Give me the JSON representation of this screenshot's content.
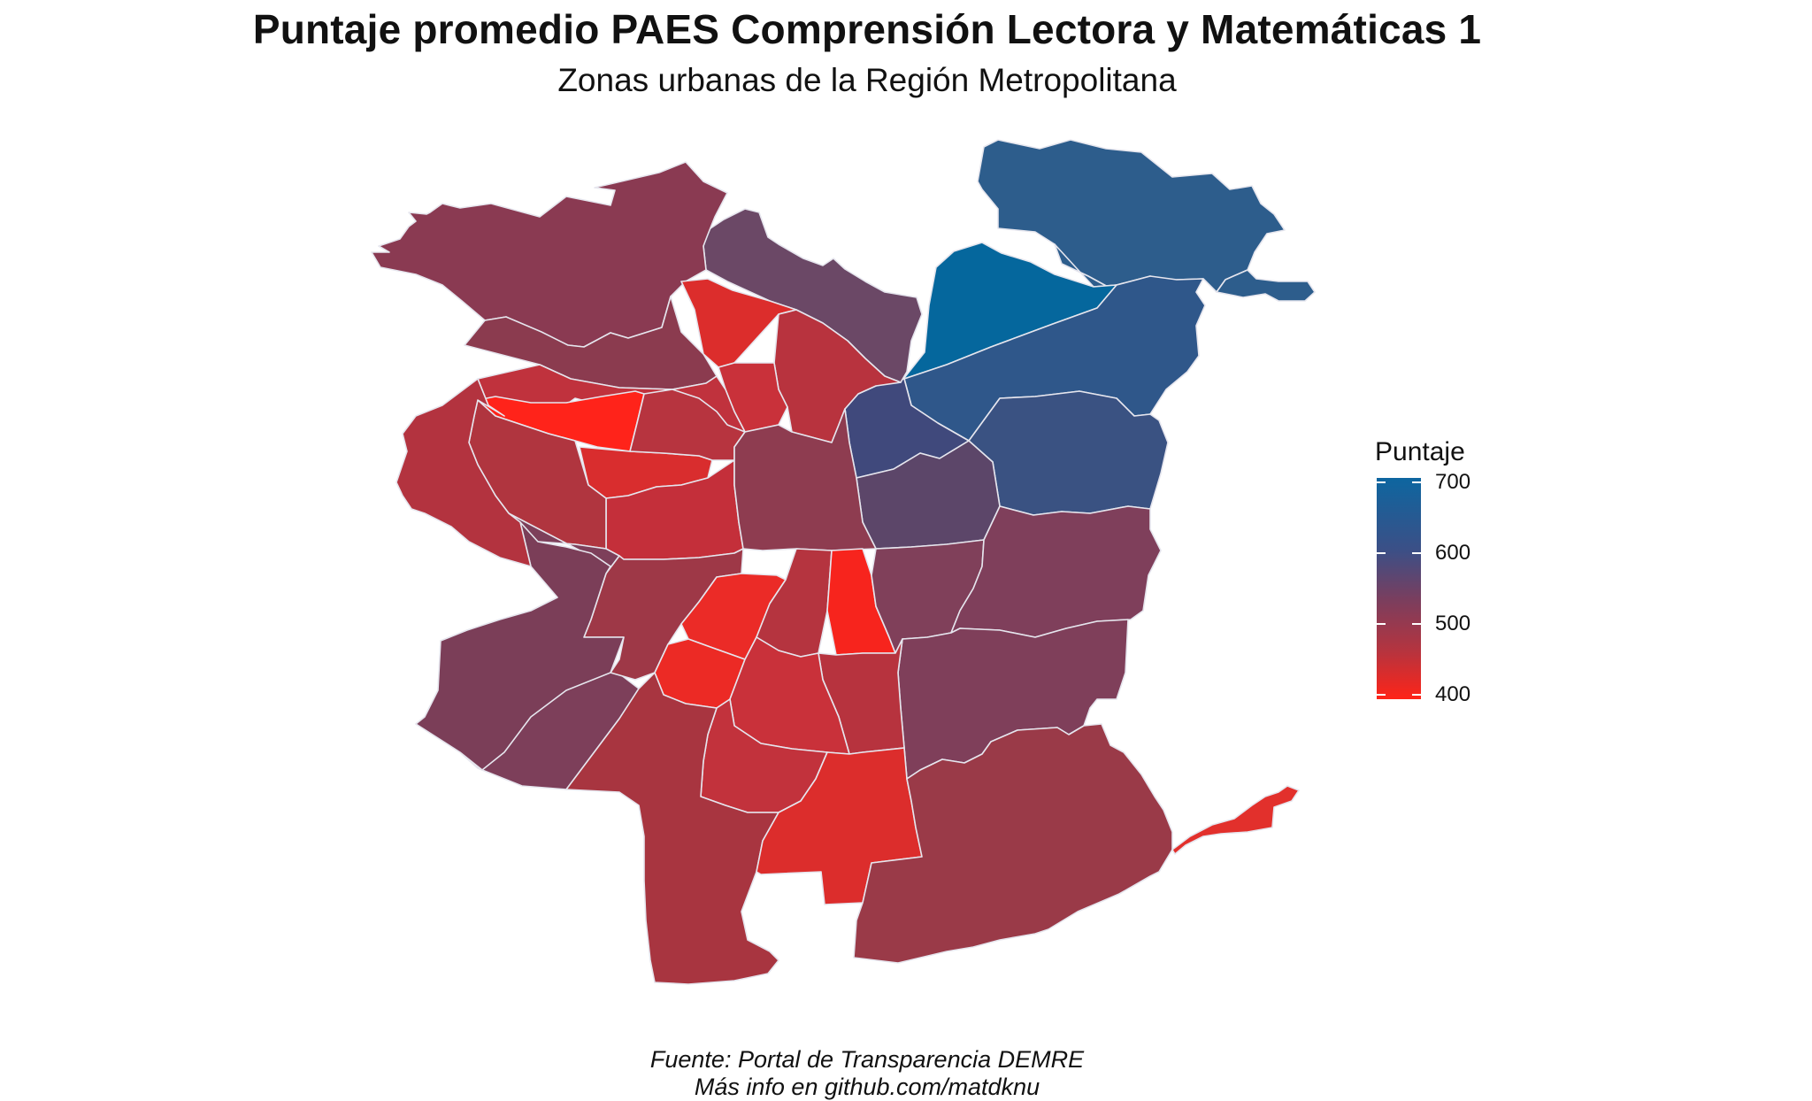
{
  "title": "Puntaje promedio PAES Comprensión Lectora y Matemáticas 1",
  "subtitle": "Zonas urbanas de la Región Metropolitana",
  "legend": {
    "title": "Puntaje",
    "ticks": [
      "700",
      "600",
      "500",
      "400"
    ],
    "scale_colors": {
      "700": "#0d66a0",
      "600": "#3c4f86",
      "500": "#a8333f",
      "400": "#ff2418"
    }
  },
  "caption": {
    "line1": "Fuente: Portal de Transparencia DEMRE",
    "line2": "Más info en github.com/matdknu"
  },
  "map": {
    "region_colors": {
      "northeast": "#2d5d8c",
      "lo_barnechea_low": "#2d5d8c",
      "vitacura": "#05679d",
      "las_condes": "#2f578a",
      "la_reina": "#3a5282",
      "providencia": "#40497c",
      "nunoa": "#5c4669",
      "huechuraba": "#6b4866",
      "quilicura": "#8b3b4f",
      "lampa_zone": "#8a3a52",
      "pudahuel_west": "#7b3e58",
      "maipu": "#7d3f5a",
      "santiago": "#8e3c50",
      "penalolen": "#7f3f5b",
      "macul": "#80405a",
      "la_florida": "#7f3f5a",
      "puente_alto": "#9a3a48",
      "san_bernardo": "#a83540",
      "la_pintana": "#dc2d2c",
      "el_bosque": "#c9313a",
      "la_granja": "#c2323c",
      "san_ramon": "#c42f3a",
      "la_cisterna": "#b7333e",
      "lo_espejo": "#ec2a25",
      "pedro_aguirre": "#eb2b27",
      "san_miguel": "#b5343f",
      "san_joaquin": "#f7241d",
      "conchali": "#dc2d2c",
      "independencia": "#c9313a",
      "recoleta": "#b8333e",
      "renca": "#c0323d",
      "cerro_navia": "#ff231a",
      "lo_prado": "#d92d2e",
      "quinta_normal": "#b7343f",
      "estacion_central": "#c42f3a",
      "pudahuel": "#b0353f",
      "cerrillos": "#9e3847",
      "cerro_navia_west": "#b3333f",
      "tail_east": "#e2302c"
    }
  }
}
